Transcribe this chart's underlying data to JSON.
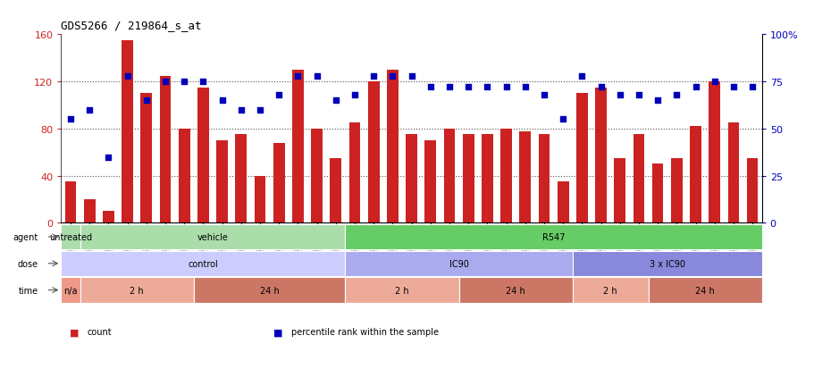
{
  "title": "GDS5266 / 219864_s_at",
  "gsm_labels": [
    "GSM386247",
    "GSM386248",
    "GSM386249",
    "GSM386256",
    "GSM386257",
    "GSM386258",
    "GSM386259",
    "GSM386260",
    "GSM386261",
    "GSM386250",
    "GSM386251",
    "GSM386252",
    "GSM386253",
    "GSM386254",
    "GSM386255",
    "GSM386241",
    "GSM386242",
    "GSM386243",
    "GSM386244",
    "GSM386245",
    "GSM386246",
    "GSM386235",
    "GSM386236",
    "GSM386237",
    "GSM386238",
    "GSM386239",
    "GSM386240",
    "GSM386230",
    "GSM386231",
    "GSM386232",
    "GSM386233",
    "GSM386234",
    "GSM386225",
    "GSM386226",
    "GSM386227",
    "GSM386228",
    "GSM386229"
  ],
  "bar_values": [
    35,
    20,
    10,
    155,
    110,
    125,
    80,
    115,
    70,
    75,
    40,
    68,
    130,
    80,
    55,
    85,
    120,
    130,
    75,
    70,
    80,
    75,
    75,
    80,
    78,
    75,
    35,
    110,
    115,
    55,
    75,
    50,
    55,
    82,
    120,
    85,
    55
  ],
  "dot_values": [
    55,
    60,
    35,
    78,
    65,
    75,
    75,
    75,
    65,
    60,
    60,
    68,
    78,
    78,
    65,
    68,
    78,
    78,
    78,
    72,
    72,
    72,
    72,
    72,
    72,
    68,
    55,
    78,
    72,
    68,
    68,
    65,
    68,
    72,
    75,
    72,
    72
  ],
  "bar_color": "#cc2222",
  "dot_color": "#0000bb",
  "ylim_left": [
    0,
    160
  ],
  "ylim_right": [
    0,
    100
  ],
  "yticks_left": [
    0,
    40,
    80,
    120,
    160
  ],
  "yticks_right": [
    0,
    25,
    50,
    75,
    100
  ],
  "ytick_labels_left": [
    "0",
    "40",
    "80",
    "120",
    "160"
  ],
  "ytick_labels_right": [
    "0",
    "25",
    "50",
    "75",
    "100%"
  ],
  "hlines": [
    40,
    80,
    120
  ],
  "agent_row": {
    "label": "agent",
    "segments": [
      {
        "text": "untreated",
        "start": 0,
        "end": 1,
        "color": "#aaddaa"
      },
      {
        "text": "vehicle",
        "start": 1,
        "end": 15,
        "color": "#aaddaa"
      },
      {
        "text": "R547",
        "start": 15,
        "end": 37,
        "color": "#66cc66"
      }
    ]
  },
  "dose_row": {
    "label": "dose",
    "segments": [
      {
        "text": "control",
        "start": 0,
        "end": 15,
        "color": "#ccccff"
      },
      {
        "text": "IC90",
        "start": 15,
        "end": 27,
        "color": "#aaaaee"
      },
      {
        "text": "3 x IC90",
        "start": 27,
        "end": 37,
        "color": "#8888dd"
      }
    ]
  },
  "time_row": {
    "label": "time",
    "segments": [
      {
        "text": "n/a",
        "start": 0,
        "end": 1,
        "color": "#ee9988"
      },
      {
        "text": "2 h",
        "start": 1,
        "end": 7,
        "color": "#eeaa99"
      },
      {
        "text": "24 h",
        "start": 7,
        "end": 15,
        "color": "#cc7766"
      },
      {
        "text": "2 h",
        "start": 15,
        "end": 21,
        "color": "#eeaa99"
      },
      {
        "text": "24 h",
        "start": 21,
        "end": 27,
        "color": "#cc7766"
      },
      {
        "text": "2 h",
        "start": 27,
        "end": 31,
        "color": "#eeaa99"
      },
      {
        "text": "24 h",
        "start": 31,
        "end": 37,
        "color": "#cc7766"
      }
    ]
  },
  "legend_items": [
    {
      "color": "#cc2222",
      "label": "count"
    },
    {
      "color": "#0000bb",
      "label": "percentile rank within the sample"
    }
  ],
  "background_color": "#ffffff",
  "grid_color": "#555555",
  "xtick_bg": "#dddddd"
}
